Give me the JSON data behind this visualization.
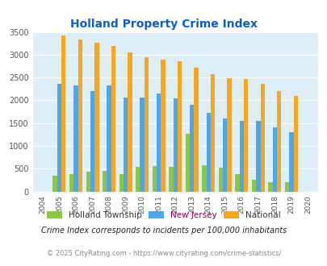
{
  "title": "Holland Property Crime Index",
  "title_color": "#1060c0",
  "years": [
    2004,
    2005,
    2006,
    2007,
    2008,
    2009,
    2010,
    2011,
    2012,
    2013,
    2014,
    2015,
    2016,
    2017,
    2018,
    2019,
    2020
  ],
  "holland": [
    0,
    350,
    390,
    440,
    460,
    390,
    545,
    565,
    540,
    1265,
    570,
    520,
    390,
    260,
    200,
    210,
    0
  ],
  "new_jersey": [
    0,
    2360,
    2320,
    2195,
    2330,
    2060,
    2065,
    2155,
    2045,
    1900,
    1720,
    1610,
    1555,
    1555,
    1405,
    1305,
    0
  ],
  "national": [
    0,
    3415,
    3340,
    3255,
    3200,
    3045,
    2950,
    2900,
    2860,
    2720,
    2580,
    2480,
    2460,
    2360,
    2195,
    2095,
    0
  ],
  "holland_color": "#8dc63f",
  "nj_color": "#4da6e8",
  "national_color": "#f5a623",
  "bg_color": "#ddeef8",
  "ylim": [
    0,
    3500
  ],
  "ylabel_step": 500,
  "footnote1": "Crime Index corresponds to incidents per 100,000 inhabitants",
  "footnote2": "© 2025 CityRating.com - https://www.cityrating.com/crime-statistics/",
  "footnote1_color": "#222222",
  "footnote2_color": "#888888",
  "nj_legend_color": "#800060",
  "legend_labels": [
    "Holland Township",
    "New Jersey",
    "National"
  ]
}
